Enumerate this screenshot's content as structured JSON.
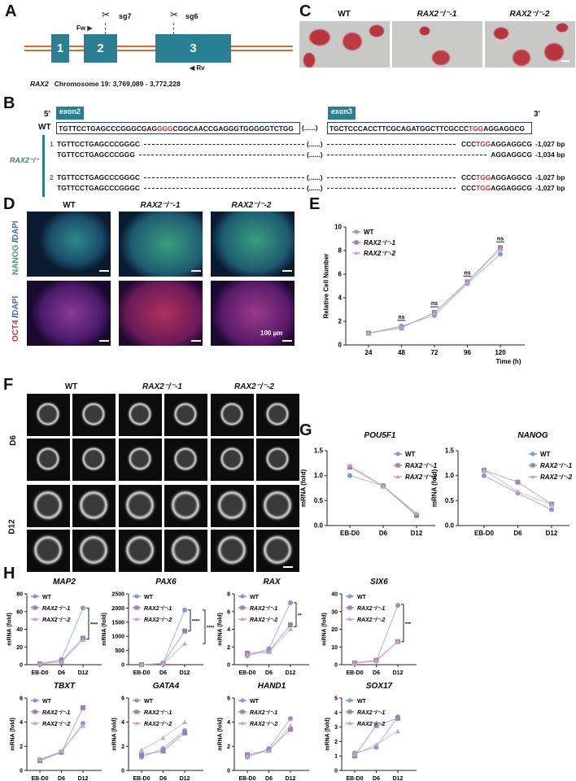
{
  "panel_labels": [
    "A",
    "B",
    "C",
    "D",
    "E",
    "F",
    "G",
    "H"
  ],
  "panel_a": {
    "exons": [
      "1",
      "2",
      "3"
    ],
    "sg7": "sg7",
    "sg6": "sg6",
    "fw": "Fw",
    "rv": "Rv",
    "gene": "RAX2",
    "chromosome": "Chromosome 19: 3,769,089 - 3,772,228",
    "colors": {
      "exon": "#2a7f93",
      "intron_line": "#e0692d"
    }
  },
  "panel_b": {
    "five_prime": "5'",
    "three_prime": "3'",
    "exon2": "exon2",
    "exon3": "exon3",
    "wt_label": "WT",
    "wt": {
      "e2_pre": "TGTTCCTGAGCCCGGGCGAG",
      "e2_red": "GGG",
      "e2_post": "CGGCAACCGAGGGTGGGGGTCTGG",
      "gap": "(......)",
      "e3_pre": "TGCTCCCACCTTCGCAGATGGCTTCGCCC",
      "e3_red": "TGG",
      "e3_post": "AGGAGGCG"
    },
    "mutant_label": "RAX2⁻/⁻",
    "rows": [
      {
        "clone": "1",
        "left": "TGTTCCTGAGCCCGGGC",
        "gap": "(......)",
        "right_pre": "CCC",
        "right_red": "TGG",
        "right_post": "AGGAGGCG",
        "size": "-1,027 bp"
      },
      {
        "clone": "",
        "left": "TGTTCCTGAGCCCGGG",
        "gap": "(......)",
        "right_pre": "",
        "right_red": "",
        "right_post": "AGGAGGCG",
        "size": "-1,034 bp"
      },
      {
        "clone": "2",
        "left": "TGTTCCTGAGCCCGGGC",
        "gap": "(......)",
        "right_pre": "CCC",
        "right_red": "TGG",
        "right_post": "AGGAGGCG",
        "size": "-1,027 bp"
      },
      {
        "clone": "",
        "left": "TGTTCCTGAGCCCGGGC",
        "gap": "(......)",
        "right_pre": "CCC",
        "right_red": "TGG",
        "right_post": "AGGAGGCG",
        "size": "-1,027 bp"
      }
    ]
  },
  "panel_c": {
    "columns": [
      "WT",
      "RAX2⁻/⁻-1",
      "RAX2⁻/⁻-2"
    ]
  },
  "panel_d": {
    "columns": [
      "WT",
      "RAX2⁻/⁻-1",
      "RAX2⁻/⁻-2"
    ],
    "rows": [
      {
        "marker": "NANOG",
        "sep": " /",
        "dapi": "DAPI",
        "marker_color": "#2faa5a"
      },
      {
        "marker": "OCT4",
        "sep": " /",
        "dapi": "DAPI",
        "marker_color": "#d0312d"
      }
    ],
    "scale_bar": "100 µm"
  },
  "panel_f": {
    "columns": [
      "WT",
      "RAX2⁻/⁻-1",
      "RAX2⁻/⁻-2"
    ],
    "rows": [
      "D6",
      "D12"
    ]
  },
  "chart_data": [
    {
      "type": "line",
      "title": "",
      "xlabel": "Time (h)",
      "ylabel": "Relative Cell Number",
      "categories": [
        "24",
        "48",
        "72",
        "96",
        "120"
      ],
      "ylim": [
        0,
        10
      ],
      "yticks": [
        "0",
        "2",
        "4",
        "6",
        "8",
        "10"
      ],
      "legend": "top-left",
      "series": [
        {
          "name": "WT",
          "values": [
            1,
            1.6,
            2.5,
            5.2,
            7.7
          ],
          "color": "#7f9bd1",
          "marker": "circle"
        },
        {
          "name": "RAX2⁻/⁻-1",
          "values": [
            1,
            1.45,
            2.75,
            5.35,
            8.25
          ],
          "color": "#9a82b8",
          "marker": "square"
        },
        {
          "name": "RAX2⁻/⁻-2",
          "values": [
            1,
            1.5,
            2.7,
            5.3,
            8.1
          ],
          "color": "#c9a3c4",
          "marker": "triangle"
        }
      ],
      "annotations": [
        {
          "category": "48",
          "text": "ns"
        },
        {
          "category": "72",
          "text": "ns"
        },
        {
          "category": "96",
          "text": "ns"
        },
        {
          "category": "120",
          "text": "ns"
        }
      ]
    },
    {
      "type": "line",
      "title": "POU5F1",
      "xlabel": "",
      "ylabel": "mRNA (fold)",
      "categories": [
        "EB-D0",
        "D6",
        "D12"
      ],
      "ylim": [
        0,
        1.5
      ],
      "yticks": [
        "0.0",
        "0.5",
        "1.0",
        "1.5"
      ],
      "legend": "top-right",
      "series": [
        {
          "name": "WT",
          "values": [
            1,
            0.8,
            0.22
          ],
          "color": "#7f9bd1",
          "marker": "circle"
        },
        {
          "name": "RAX2⁻/⁻-1",
          "values": [
            1.17,
            0.79,
            0.2
          ],
          "color": "#9a82b8",
          "marker": "square"
        },
        {
          "name": "RAX2⁻/⁻-2",
          "values": [
            1.21,
            0.79,
            0.25
          ],
          "color": "#c9a3c4",
          "marker": "triangle"
        }
      ]
    },
    {
      "type": "line",
      "title": "NANOG",
      "xlabel": "",
      "ylabel": "mRNA (fold)",
      "categories": [
        "EB-D0",
        "D6",
        "D12"
      ],
      "ylim": [
        0,
        1.5
      ],
      "yticks": [
        "0.0",
        "0.5",
        "1.0",
        "1.5"
      ],
      "legend": "top-right",
      "series": [
        {
          "name": "WT",
          "values": [
            1,
            0.65,
            0.32
          ],
          "color": "#7f9bd1",
          "marker": "circle"
        },
        {
          "name": "RAX2⁻/⁻-1",
          "values": [
            1.11,
            0.87,
            0.43
          ],
          "color": "#9a82b8",
          "marker": "square"
        },
        {
          "name": "RAX2⁻/⁻-2",
          "values": [
            1.11,
            0.68,
            0.42
          ],
          "color": "#c9a3c4",
          "marker": "triangle"
        }
      ]
    },
    {
      "type": "line",
      "title": "MAP2",
      "xlabel": "",
      "ylabel": "mRNA (fold)",
      "categories": [
        "EB-D0",
        "D6",
        "D12"
      ],
      "ylim": [
        0,
        80
      ],
      "yticks": [
        "0",
        "20",
        "40",
        "60",
        "80"
      ],
      "legend": "top-left",
      "series": [
        {
          "name": "WT",
          "values": [
            1,
            6,
            64
          ],
          "color": "#7f9bd1",
          "marker": "circle"
        },
        {
          "name": "RAX2⁻/⁻-1",
          "values": [
            1,
            4,
            30
          ],
          "color": "#9a82b8",
          "marker": "square"
        },
        {
          "name": "RAX2⁻/⁻-2",
          "values": [
            1,
            3,
            28
          ],
          "color": "#c9a3c4",
          "marker": "triangle"
        }
      ],
      "significance": [
        {
          "from": 64,
          "to": 29,
          "text": "****"
        }
      ]
    },
    {
      "type": "line",
      "title": "PAX6",
      "xlabel": "",
      "ylabel": "mRNA (fold)",
      "categories": [
        "EB-D0",
        "D6",
        "D12"
      ],
      "ylim": [
        0,
        2500
      ],
      "yticks": [
        "0",
        "500",
        "1000",
        "1500",
        "2000",
        "2500"
      ],
      "legend": "top-left",
      "series": [
        {
          "name": "WT",
          "values": [
            1,
            50,
            1930
          ],
          "color": "#7f9bd1",
          "marker": "circle"
        },
        {
          "name": "RAX2⁻/⁻-1",
          "values": [
            1,
            40,
            1190
          ],
          "color": "#9a82b8",
          "marker": "square"
        },
        {
          "name": "RAX2⁻/⁻-2",
          "values": [
            1,
            30,
            740
          ],
          "color": "#c9a3c4",
          "marker": "triangle"
        }
      ],
      "significance": [
        {
          "from": 1930,
          "to": 1190,
          "text": "****"
        },
        {
          "from": 1930,
          "to": 740,
          "text": "****"
        }
      ]
    },
    {
      "type": "line",
      "title": "RAX",
      "xlabel": "",
      "ylabel": "mRNA (fold)",
      "categories": [
        "EB-D0",
        "D6",
        "D12"
      ],
      "ylim": [
        0,
        8
      ],
      "yticks": [
        "0",
        "2",
        "4",
        "6",
        "8"
      ],
      "legend": "top-left",
      "series": [
        {
          "name": "WT",
          "values": [
            1,
            1.8,
            7
          ],
          "color": "#7f9bd1",
          "marker": "circle"
        },
        {
          "name": "RAX2⁻/⁻-1",
          "values": [
            1.3,
            1.5,
            4.5
          ],
          "color": "#9a82b8",
          "marker": "square"
        },
        {
          "name": "RAX2⁻/⁻-2",
          "values": [
            1.1,
            1.4,
            4
          ],
          "color": "#c9a3c4",
          "marker": "triangle"
        }
      ],
      "significance": [
        {
          "from": 7,
          "to": 4.3,
          "text": "**"
        }
      ]
    },
    {
      "type": "line",
      "title": "SIX6",
      "xlabel": "",
      "ylabel": "mRNA (fold)",
      "categories": [
        "EB-D0",
        "D6",
        "D12"
      ],
      "ylim": [
        0,
        40
      ],
      "yticks": [
        "0",
        "10",
        "20",
        "30",
        "40"
      ],
      "legend": "top-left",
      "series": [
        {
          "name": "WT",
          "values": [
            1,
            2,
            33.5
          ],
          "color": "#7f9bd1",
          "marker": "circle"
        },
        {
          "name": "RAX2⁻/⁻-1",
          "values": [
            1,
            2.5,
            13
          ],
          "color": "#9a82b8",
          "marker": "square"
        },
        {
          "name": "RAX2⁻/⁻-2",
          "values": [
            1,
            2,
            13
          ],
          "color": "#c9a3c4",
          "marker": "triangle"
        }
      ],
      "significance": [
        {
          "from": 34,
          "to": 13,
          "text": "***"
        }
      ]
    },
    {
      "type": "line",
      "title": "TBXT",
      "xlabel": "",
      "ylabel": "mRNA (fold)",
      "categories": [
        "EB-D0",
        "D6",
        "D12"
      ],
      "ylim": [
        0,
        6
      ],
      "yticks": [
        "0",
        "2",
        "4",
        "6"
      ],
      "legend": "top-left",
      "series": [
        {
          "name": "WT",
          "values": [
            0.9,
            1.5,
            3.9
          ],
          "color": "#7f9bd1",
          "marker": "circle"
        },
        {
          "name": "RAX2⁻/⁻-1",
          "values": [
            0.8,
            1.5,
            5.2
          ],
          "color": "#9a82b8",
          "marker": "square"
        },
        {
          "name": "RAX2⁻/⁻-2",
          "values": [
            0.9,
            1.6,
            3.7
          ],
          "color": "#c9a3c4",
          "marker": "triangle"
        }
      ]
    },
    {
      "type": "line",
      "title": "GATA4",
      "xlabel": "",
      "ylabel": "mRNA (fold)",
      "categories": [
        "EB-D0",
        "D6",
        "D12"
      ],
      "ylim": [
        0,
        6
      ],
      "yticks": [
        "0",
        "2",
        "4",
        "6"
      ],
      "legend": "top-left",
      "series": [
        {
          "name": "WT",
          "values": [
            1.1,
            1.8,
            3.3
          ],
          "color": "#7f9bd1",
          "marker": "circle"
        },
        {
          "name": "RAX2⁻/⁻-1",
          "values": [
            1.3,
            1.6,
            3.1
          ],
          "color": "#9a82b8",
          "marker": "square"
        },
        {
          "name": "RAX2⁻/⁻-2",
          "values": [
            1.7,
            2.7,
            4
          ],
          "color": "#c9a3c4",
          "marker": "triangle"
        }
      ]
    },
    {
      "type": "line",
      "title": "HAND1",
      "xlabel": "",
      "ylabel": "mRNA (fold)",
      "categories": [
        "EB-D0",
        "D6",
        "D12"
      ],
      "ylim": [
        0,
        6
      ],
      "yticks": [
        "0",
        "2",
        "4",
        "6"
      ],
      "legend": "top-left",
      "series": [
        {
          "name": "WT",
          "values": [
            1.1,
            1.8,
            4.3
          ],
          "color": "#7f9bd1",
          "marker": "circle"
        },
        {
          "name": "RAX2⁻/⁻-1",
          "values": [
            1.3,
            1.7,
            3.4
          ],
          "color": "#9a82b8",
          "marker": "square"
        },
        {
          "name": "RAX2⁻/⁻-2",
          "values": [
            1.2,
            1.6,
            3.7
          ],
          "color": "#c9a3c4",
          "marker": "triangle"
        }
      ]
    },
    {
      "type": "line",
      "title": "SOX17",
      "xlabel": "",
      "ylabel": "mRNA (fold)",
      "categories": [
        "EB-D0",
        "D6",
        "D12"
      ],
      "ylim": [
        0,
        5
      ],
      "yticks": [
        "0",
        "1",
        "2",
        "3",
        "4",
        "5"
      ],
      "legend": "top-left",
      "series": [
        {
          "name": "WT",
          "values": [
            1.2,
            1.6,
            3.7
          ],
          "color": "#7f9bd1",
          "marker": "circle"
        },
        {
          "name": "RAX2⁻/⁻-1",
          "values": [
            1,
            3.1,
            3.6
          ],
          "color": "#9a82b8",
          "marker": "square"
        },
        {
          "name": "RAX2⁻/⁻-2",
          "values": [
            1.1,
            1.8,
            2.7
          ],
          "color": "#c9a3c4",
          "marker": "triangle"
        }
      ]
    }
  ]
}
